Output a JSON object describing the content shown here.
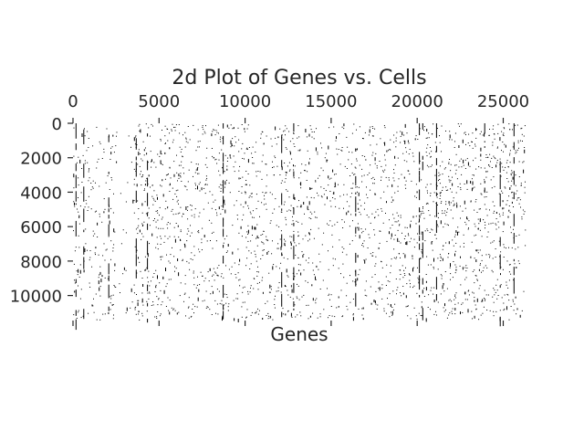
{
  "chart_data": {
    "type": "scatter",
    "title": "2d Plot of Genes vs. Cells",
    "xlabel": "Genes",
    "ylabel": "",
    "xlim": [
      0,
      26300
    ],
    "ylim": [
      11400,
      0
    ],
    "y_inverted": true,
    "x_axis_position": "top",
    "xticks": [
      0,
      5000,
      10000,
      15000,
      20000,
      25000
    ],
    "xtick_labels": [
      "0",
      "5000",
      "10000",
      "15000",
      "20000",
      "25000"
    ],
    "yticks": [
      0,
      2000,
      4000,
      6000,
      8000,
      10000
    ],
    "ytick_labels": [
      "0",
      "2000",
      "4000",
      "6000",
      "8000",
      "10000"
    ],
    "grid": false,
    "legend": "none",
    "marker_color": "#000000",
    "background_color": "#ffffff",
    "description_of_marks": "Sparse matrix of nonzero entries (genes on x, cells on y)",
    "dense_gene_columns": [
      150,
      600,
      2050,
      3650,
      4300,
      8700,
      12100,
      12800,
      16400,
      20100,
      20300,
      21100,
      23900,
      24800,
      25600
    ],
    "gene_density_bands": [
      {
        "x": [
          0,
          2500
        ],
        "density": 0.55
      },
      {
        "x": [
          2500,
          3500
        ],
        "density": 0.15
      },
      {
        "x": [
          3500,
          13000
        ],
        "density": 0.75
      },
      {
        "x": [
          13000,
          17500
        ],
        "density": 0.6
      },
      {
        "x": [
          17500,
          20500
        ],
        "density": 0.7
      },
      {
        "x": [
          20500,
          26300
        ],
        "density": 0.85
      }
    ],
    "n_cells": 11400,
    "n_genes": 26300
  }
}
